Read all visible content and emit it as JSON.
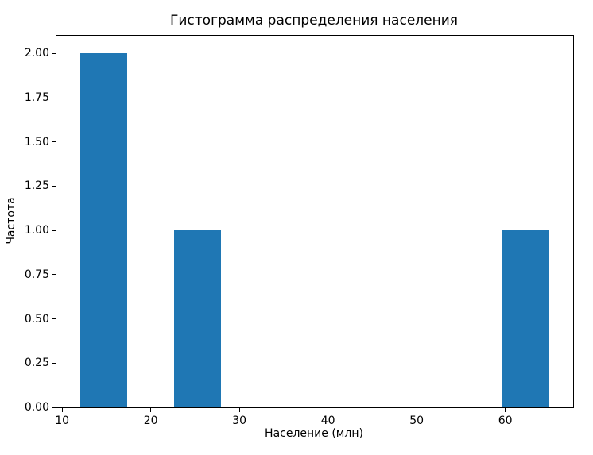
{
  "chart_data": {
    "type": "bar",
    "subtype": "histogram",
    "title": "Гистограмма распределения населения",
    "xlabel": "Население (млн)",
    "ylabel": "Частота",
    "bin_edges": [
      12.0,
      17.3,
      22.6,
      27.9,
      33.2,
      38.5,
      43.8,
      49.1,
      54.4,
      59.7,
      65.0
    ],
    "counts": [
      2,
      0,
      1,
      0,
      0,
      0,
      0,
      0,
      0,
      1
    ],
    "bars": [
      {
        "x_start": 12.0,
        "x_end": 17.3,
        "frequency": 2
      },
      {
        "x_start": 22.6,
        "x_end": 27.9,
        "frequency": 1
      },
      {
        "x_start": 59.7,
        "x_end": 65.0,
        "frequency": 1
      }
    ],
    "xticks": [
      10,
      20,
      30,
      40,
      50,
      60
    ],
    "ytick_values": [
      0,
      0.25,
      0.5,
      0.75,
      1.0,
      1.25,
      1.5,
      1.75,
      2.0
    ],
    "ytick_labels": [
      "0.00",
      "0.25",
      "0.50",
      "0.75",
      "1.00",
      "1.25",
      "1.50",
      "1.75",
      "2.00"
    ],
    "xlim": [
      9.35,
      67.65
    ],
    "ylim": [
      0,
      2.1
    ],
    "bar_color": "#1f77b4",
    "grid": false
  }
}
